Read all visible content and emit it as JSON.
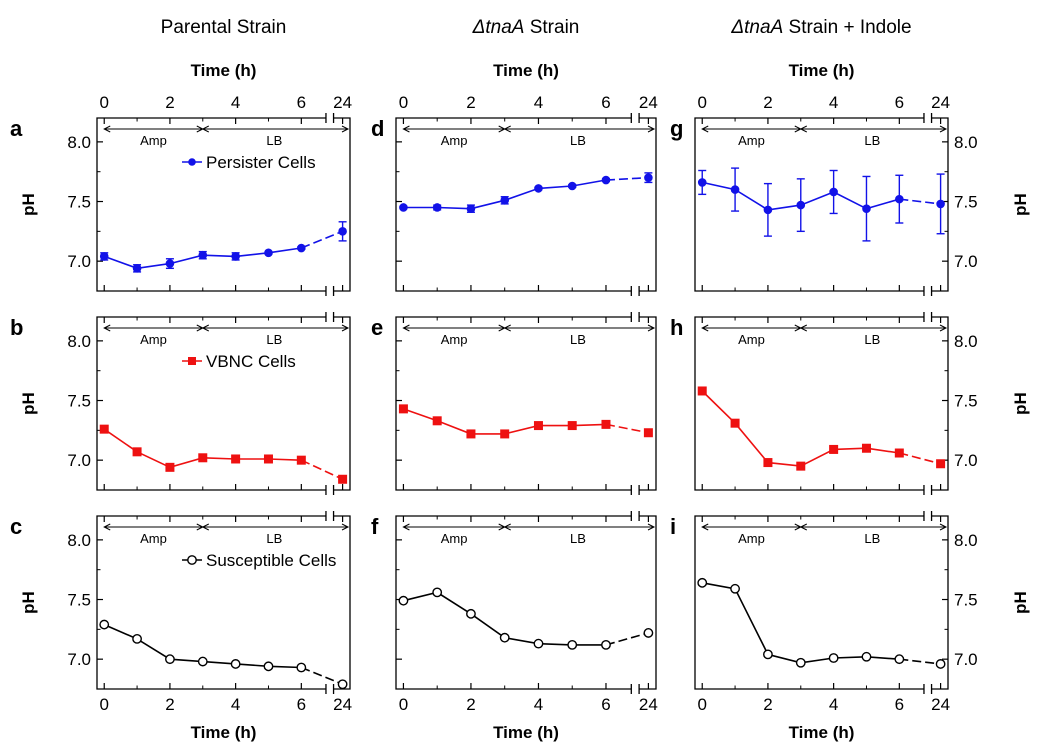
{
  "chart_data": {
    "type": "line",
    "layout": "3x3 grid of panels",
    "column_titles": [
      {
        "main": "Parental Strain",
        "italic": "",
        "suffix": "Parental Strain"
      },
      {
        "main": "ΔtnaA Strain",
        "italic": "ΔtnaA",
        "suffix": " Strain"
      },
      {
        "main": "ΔtnaA Strain + Indole",
        "italic": "ΔtnaA",
        "suffix": " Strain + Indole"
      }
    ],
    "xlabel": "Time (h)",
    "ylabel": "pH",
    "x_ticks": [
      "0",
      "2",
      "4",
      "6",
      "24"
    ],
    "y_ticks": [
      "7.0",
      "7.5",
      "8.0"
    ],
    "ylim": [
      6.75,
      8.2
    ],
    "x_axis": "broken between 6 and 24 h",
    "phases": [
      {
        "label": "Amp",
        "from": 0,
        "to": 3
      },
      {
        "label": "LB",
        "from": 3,
        "to": 24
      }
    ],
    "legend": [
      "Persister Cells",
      "VBNC Cells",
      "Susceptible Cells"
    ],
    "colors": {
      "persister": "#1212e8",
      "vbnc": "#ee1111",
      "susceptible": "#000000"
    },
    "x": [
      0,
      1,
      2,
      3,
      4,
      5,
      6,
      24
    ],
    "panels": [
      {
        "letter": "a",
        "row": 0,
        "col": 0,
        "series": "Persister Cells",
        "marker": "circle-filled",
        "y": [
          7.04,
          6.94,
          6.98,
          7.05,
          7.04,
          7.07,
          7.11,
          7.25
        ],
        "err": [
          0.03,
          0.03,
          0.04,
          0.03,
          0.03,
          0.01,
          0.01,
          0.08
        ]
      },
      {
        "letter": "d",
        "row": 0,
        "col": 1,
        "series": "Persister Cells",
        "marker": "circle-filled",
        "y": [
          7.45,
          7.45,
          7.44,
          7.51,
          7.61,
          7.63,
          7.68,
          7.7
        ],
        "err": [
          0.01,
          0.02,
          0.03,
          0.03,
          0.01,
          0.01,
          0.01,
          0.04
        ]
      },
      {
        "letter": "g",
        "row": 0,
        "col": 2,
        "series": "Persister Cells",
        "marker": "circle-filled",
        "y": [
          7.66,
          7.6,
          7.43,
          7.47,
          7.58,
          7.44,
          7.52,
          7.48
        ],
        "err": [
          0.1,
          0.18,
          0.22,
          0.22,
          0.18,
          0.27,
          0.2,
          0.25
        ]
      },
      {
        "letter": "b",
        "row": 1,
        "col": 0,
        "series": "VBNC Cells",
        "marker": "square-filled",
        "y": [
          7.26,
          7.07,
          6.94,
          7.02,
          7.01,
          7.01,
          7.0,
          6.84
        ],
        "err": [
          0.02,
          0.01,
          0.02,
          0.02,
          0.01,
          0.01,
          0.02,
          0.02
        ]
      },
      {
        "letter": "e",
        "row": 1,
        "col": 1,
        "series": "VBNC Cells",
        "marker": "square-filled",
        "y": [
          7.43,
          7.33,
          7.22,
          7.22,
          7.29,
          7.29,
          7.3,
          7.23
        ],
        "err": [
          0.01,
          0.01,
          0.01,
          0.01,
          0.01,
          0.01,
          0.01,
          0.01
        ]
      },
      {
        "letter": "h",
        "row": 1,
        "col": 2,
        "series": "VBNC Cells",
        "marker": "square-filled",
        "y": [
          7.58,
          7.31,
          6.98,
          6.95,
          7.09,
          7.1,
          7.06,
          6.97
        ],
        "err": [
          0.01,
          0.01,
          0.01,
          0.01,
          0.01,
          0.01,
          0.01,
          0.01
        ]
      },
      {
        "letter": "c",
        "row": 2,
        "col": 0,
        "series": "Susceptible Cells",
        "marker": "circle-open",
        "y": [
          7.29,
          7.17,
          7.0,
          6.98,
          6.96,
          6.94,
          6.93,
          6.79
        ],
        "err": [
          0.0,
          0.0,
          0.0,
          0.0,
          0.0,
          0.0,
          0.0,
          0.0
        ]
      },
      {
        "letter": "f",
        "row": 2,
        "col": 1,
        "series": "Susceptible Cells",
        "marker": "circle-open",
        "y": [
          7.49,
          7.56,
          7.38,
          7.18,
          7.13,
          7.12,
          7.12,
          7.22
        ],
        "err": [
          0.0,
          0.0,
          0.0,
          0.0,
          0.0,
          0.0,
          0.0,
          0.0
        ]
      },
      {
        "letter": "i",
        "row": 2,
        "col": 2,
        "series": "Susceptible Cells",
        "marker": "circle-open",
        "y": [
          7.64,
          7.59,
          7.04,
          6.97,
          7.01,
          7.02,
          7.0,
          6.96
        ],
        "err": [
          0.0,
          0.0,
          0.0,
          0.0,
          0.0,
          0.0,
          0.0,
          0.0
        ]
      }
    ]
  }
}
